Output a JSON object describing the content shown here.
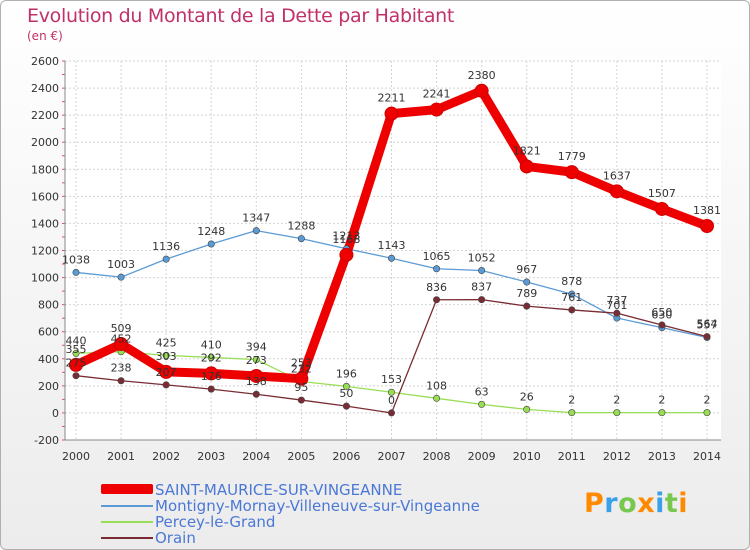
{
  "chart_data": {
    "type": "line",
    "title": "Evolution du Montant de la Dette par Habitant",
    "subtitle": "(en €)",
    "x": [
      "2000",
      "2001",
      "2002",
      "2003",
      "2004",
      "2005",
      "2006",
      "2007",
      "2008",
      "2009",
      "2010",
      "2011",
      "2012",
      "2013",
      "2014"
    ],
    "ylim": [
      -200,
      2600
    ],
    "yticks": [
      -200,
      0,
      200,
      400,
      600,
      800,
      1000,
      1200,
      1400,
      1600,
      1800,
      2000,
      2200,
      2400,
      2600
    ],
    "grid": true,
    "legend_position": "bottom-left",
    "series": [
      {
        "name": "SAINT-MAURICE-SUR-VINGEANNE",
        "color": "#ee0000",
        "values": [
          355,
          509,
          303,
          292,
          273,
          253,
          1168,
          2211,
          2241,
          2380,
          1821,
          1779,
          1637,
          1507,
          1381
        ],
        "labels": [
          "355",
          "509",
          "303",
          "292",
          "273",
          "253",
          "1168",
          "2211",
          "2241",
          "2380",
          "1821",
          "1779",
          "1637",
          "1507",
          "1381"
        ]
      },
      {
        "name": "Montigny-Mornay-Villeneuve-sur-Vingeanne",
        "color": "#5b9bd5",
        "values": [
          1038,
          1003,
          1136,
          1248,
          1347,
          1288,
          1213,
          1143,
          1065,
          1052,
          967,
          878,
          701,
          630,
          557
        ],
        "labels": [
          "1038",
          "1003",
          "1136",
          "1248",
          "1347",
          "1288",
          "1213",
          "1143",
          "1065",
          "1052",
          "967",
          "878",
          "701",
          "630",
          "557"
        ]
      },
      {
        "name": "Percey-le-Grand",
        "color": "#99dd55",
        "values": [
          440,
          452,
          425,
          410,
          394,
          232,
          196,
          153,
          108,
          63,
          26,
          2,
          2,
          2,
          2
        ],
        "labels": [
          "440",
          "452",
          "425",
          "410",
          "394",
          "232",
          "196",
          "153",
          "108",
          "63",
          "26",
          "2",
          "2",
          "2",
          "2"
        ]
      },
      {
        "name": "Orain",
        "color": "#7a2c34",
        "values": [
          275,
          238,
          207,
          176,
          138,
          95,
          50,
          0,
          836,
          837,
          789,
          761,
          737,
          650,
          564
        ],
        "labels": [
          "275",
          "238",
          "207",
          "176",
          "138",
          "95",
          "50",
          "0",
          "836",
          "837",
          "789",
          "761",
          "737",
          "650",
          "564"
        ]
      }
    ]
  },
  "brand": {
    "text": "Proxiti"
  }
}
